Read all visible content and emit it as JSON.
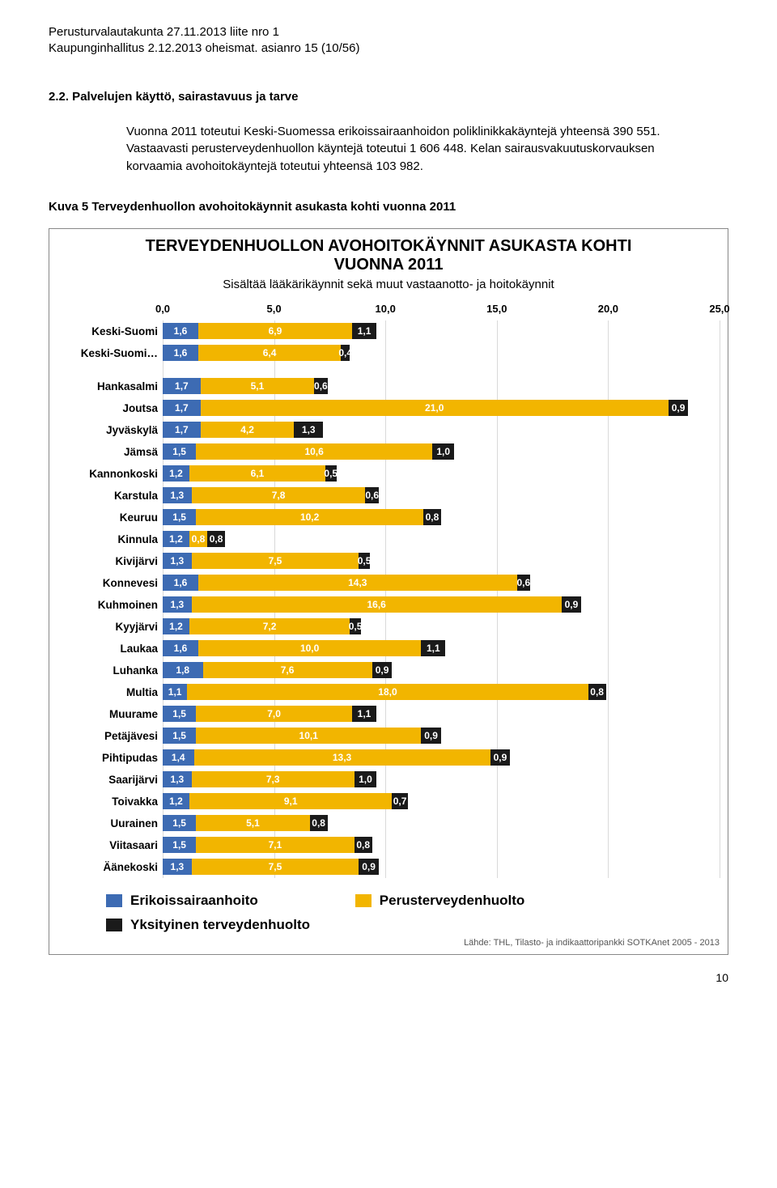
{
  "header": {
    "line1": "Perusturvalautakunta 27.11.2013 liite nro 1",
    "line2": "Kaupunginhallitus 2.12.2013 oheismat. asianro 15 (10/56)"
  },
  "section": {
    "num_title": "2.2.   Palvelujen käyttö, sairastavuus ja tarve",
    "para": "Vuonna 2011 toteutui Keski-Suomessa erikoissairaanhoidon poliklinikkakäyntejä yhteensä 390 551. Vastaavasti perusterveydenhuollon käyntejä toteutui 1 606 448. Kelan sairausvakuutuskorvauksen korvaamia avohoitokäyntejä toteutui yhteensä 103 982."
  },
  "figure_caption": "Kuva 5 Terveydenhuollon avohoitokäynnit asukasta kohti vuonna 2011",
  "chart": {
    "title_l1": "TERVEYDENHUOLLON AVOHOITOKÄYNNIT ASUKASTA KOHTI",
    "title_l2": "VUONNA 2011",
    "subtitle": "Sisältää lääkärikäynnit sekä muut vastaanotto- ja hoitokäynnit",
    "x_max": 25.0,
    "ticks": [
      0.0,
      5.0,
      10.0,
      15.0,
      20.0,
      25.0
    ],
    "tick_labels": [
      "0,0",
      "5,0",
      "10,0",
      "15,0",
      "20,0",
      "25,0"
    ],
    "series_colors": {
      "erikois": "#3d6bb3",
      "perus": "#f2b500",
      "yksit": "#1a1a1a"
    },
    "grid_color": "#d9d9d9",
    "groups": [
      [
        {
          "name": "Keski-Suomi",
          "v": [
            1.6,
            6.9,
            1.1
          ],
          "labels": [
            "1,6",
            "6,9",
            "1,1"
          ]
        },
        {
          "name": "Keski-Suomi…",
          "v": [
            1.6,
            6.4,
            0.4
          ],
          "labels": [
            "1,6",
            "6,4",
            "0,4"
          ]
        }
      ],
      [
        {
          "name": "Hankasalmi",
          "v": [
            1.7,
            5.1,
            0.6
          ],
          "labels": [
            "1,7",
            "5,1",
            "0,6"
          ]
        },
        {
          "name": "Joutsa",
          "v": [
            1.7,
            21.0,
            0.9
          ],
          "labels": [
            "1,7",
            "21,0",
            "0,9"
          ]
        },
        {
          "name": "Jyväskylä",
          "v": [
            1.7,
            4.2,
            1.3
          ],
          "labels": [
            "1,7",
            "4,2",
            "1,3"
          ]
        },
        {
          "name": "Jämsä",
          "v": [
            1.5,
            10.6,
            1.0
          ],
          "labels": [
            "1,5",
            "10,6",
            "1,0"
          ]
        },
        {
          "name": "Kannonkoski",
          "v": [
            1.2,
            6.1,
            0.5
          ],
          "labels": [
            "1,2",
            "6,1",
            "0,5"
          ]
        },
        {
          "name": "Karstula",
          "v": [
            1.3,
            7.8,
            0.6
          ],
          "labels": [
            "1,3",
            "7,8",
            "0,6"
          ]
        },
        {
          "name": "Keuruu",
          "v": [
            1.5,
            10.2,
            0.8
          ],
          "labels": [
            "1,5",
            "10,2",
            "0,8"
          ]
        },
        {
          "name": "Kinnula",
          "v": [
            1.2,
            0.8,
            0.8
          ],
          "labels": [
            "1,2",
            "0,8",
            "0,8"
          ]
        },
        {
          "name": "Kivijärvi",
          "v": [
            1.3,
            7.5,
            0.5
          ],
          "labels": [
            "1,3",
            "7,5",
            "0,5"
          ]
        },
        {
          "name": "Konnevesi",
          "v": [
            1.6,
            14.3,
            0.6
          ],
          "labels": [
            "1,6",
            "14,3",
            "0,6"
          ]
        },
        {
          "name": "Kuhmoinen",
          "v": [
            1.3,
            16.6,
            0.9
          ],
          "labels": [
            "1,3",
            "16,6",
            "0,9"
          ]
        },
        {
          "name": "Kyyjärvi",
          "v": [
            1.2,
            7.2,
            0.5
          ],
          "labels": [
            "1,2",
            "7,2",
            "0,5"
          ]
        },
        {
          "name": "Laukaa",
          "v": [
            1.6,
            10.0,
            1.1
          ],
          "labels": [
            "1,6",
            "10,0",
            "1,1"
          ]
        },
        {
          "name": "Luhanka",
          "v": [
            1.8,
            7.6,
            0.9
          ],
          "labels": [
            "1,8",
            "7,6",
            "0,9"
          ]
        },
        {
          "name": "Multia",
          "v": [
            1.1,
            18.0,
            0.8
          ],
          "labels": [
            "1,1",
            "18,0",
            "0,8"
          ]
        },
        {
          "name": "Muurame",
          "v": [
            1.5,
            7.0,
            1.1
          ],
          "labels": [
            "1,5",
            "7,0",
            "1,1"
          ]
        },
        {
          "name": "Petäjävesi",
          "v": [
            1.5,
            10.1,
            0.9
          ],
          "labels": [
            "1,5",
            "10,1",
            "0,9"
          ]
        },
        {
          "name": "Pihtipudas",
          "v": [
            1.4,
            13.3,
            0.9
          ],
          "labels": [
            "1,4",
            "13,3",
            "0,9"
          ]
        },
        {
          "name": "Saarijärvi",
          "v": [
            1.3,
            7.3,
            1.0
          ],
          "labels": [
            "1,3",
            "7,3",
            "1,0"
          ]
        },
        {
          "name": "Toivakka",
          "v": [
            1.2,
            9.1,
            0.7
          ],
          "labels": [
            "1,2",
            "9,1",
            "0,7"
          ]
        },
        {
          "name": "Uurainen",
          "v": [
            1.5,
            5.1,
            0.8
          ],
          "labels": [
            "1,5",
            "5,1",
            "0,8"
          ]
        },
        {
          "name": "Viitasaari",
          "v": [
            1.5,
            7.1,
            0.8
          ],
          "labels": [
            "1,5",
            "7,1",
            "0,8"
          ]
        },
        {
          "name": "Äänekoski",
          "v": [
            1.3,
            7.5,
            0.9
          ],
          "labels": [
            "1,3",
            "7,5",
            "0,9"
          ]
        }
      ]
    ],
    "legend": [
      {
        "label": "Erikoissairaanhoito",
        "color": "#3d6bb3"
      },
      {
        "label": "Perusterveydenhuolto",
        "color": "#f2b500"
      },
      {
        "label": "Yksityinen terveydenhuolto",
        "color": "#1a1a1a"
      }
    ],
    "source": "Lähde: THL, Tilasto- ja indikaattoripankki SOTKAnet 2005 - 2013"
  },
  "page_number": "10"
}
